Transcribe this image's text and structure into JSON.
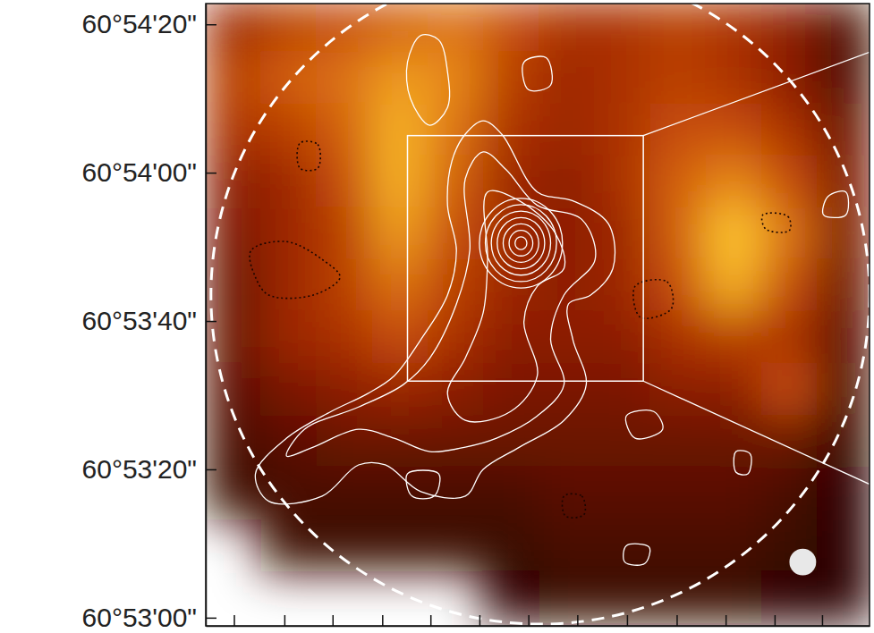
{
  "chart_data": {
    "type": "contour_image",
    "xlim": [
      -45.1,
      44.4
    ],
    "xticks": [
      -41.3,
      -34.5,
      -28.0,
      -21.3,
      -14.8,
      -8.2,
      -1.6,
      5.0,
      11.7,
      18.4,
      25.0,
      31.6,
      38.0
    ],
    "ylim": [
      219178.9,
      219262.8
    ],
    "yticks": [
      {
        "value": 219260,
        "label": "60°54'20\""
      },
      {
        "value": 219240,
        "label": "60°54'00\""
      },
      {
        "value": 219220,
        "label": "60°53'40\""
      },
      {
        "value": 219200,
        "label": "60°53'20\""
      },
      {
        "value": 219180,
        "label": "60°53'00\""
      }
    ],
    "tick_labels": "y",
    "image": {
      "x": [
        -41.4,
        -33.9,
        -26.4,
        -18.9,
        -11.4,
        -3.9,
        3.6,
        11.1,
        18.6,
        26.1,
        33.6,
        41.1
      ],
      "y": [
        219259.8,
        219252.8,
        219245.8,
        219238.8,
        219231.8,
        219224.8,
        219217.8,
        219210.8,
        219203.8,
        219196.8,
        219189.8,
        219182.8
      ],
      "z": [
        [
          0.45,
          0.55,
          0.6,
          0.65,
          0.7,
          0.6,
          0.5,
          0.5,
          0.55,
          0.5,
          0.4,
          0.2
        ],
        [
          0.55,
          0.65,
          0.7,
          0.8,
          0.75,
          0.55,
          0.45,
          0.5,
          0.55,
          0.5,
          0.4,
          0.2
        ],
        [
          0.5,
          0.55,
          0.65,
          0.85,
          0.7,
          0.5,
          0.45,
          0.5,
          0.6,
          0.6,
          0.5,
          0.3
        ],
        [
          0.4,
          0.45,
          0.6,
          0.85,
          0.65,
          0.45,
          0.4,
          0.5,
          0.65,
          0.75,
          0.6,
          0.35
        ],
        [
          0.35,
          0.45,
          0.55,
          0.8,
          0.6,
          0.45,
          0.4,
          0.45,
          0.65,
          0.9,
          0.7,
          0.35
        ],
        [
          0.3,
          0.45,
          0.55,
          0.7,
          0.55,
          0.45,
          0.4,
          0.45,
          0.6,
          0.85,
          0.6,
          0.3
        ],
        [
          0.3,
          0.45,
          0.5,
          0.6,
          0.5,
          0.4,
          0.4,
          0.4,
          0.5,
          0.55,
          0.5,
          0.25
        ],
        [
          0.25,
          0.35,
          0.4,
          0.45,
          0.4,
          0.35,
          0.35,
          0.35,
          0.4,
          0.4,
          0.6,
          0.2
        ],
        [
          0.2,
          0.25,
          0.3,
          0.3,
          0.3,
          0.3,
          0.3,
          0.3,
          0.3,
          0.3,
          0.3,
          0.15
        ],
        [
          0.15,
          0.2,
          0.2,
          0.2,
          0.2,
          0.2,
          0.25,
          0.25,
          0.25,
          0.25,
          0.2,
          0.1
        ],
        [
          null,
          0.15,
          0.15,
          0.15,
          0.15,
          0.15,
          0.2,
          0.2,
          0.2,
          0.2,
          0.15,
          0.1
        ],
        [
          null,
          null,
          null,
          null,
          null,
          0.1,
          0.15,
          0.15,
          0.15,
          0.15,
          0.1,
          0.1
        ]
      ]
    },
    "contours": [
      [
        [
          -11.9,
          219241.6
        ],
        [
          -10.1,
          219245.2
        ],
        [
          -7.7,
          219247.0
        ],
        [
          -5.2,
          219245.2
        ],
        [
          -0.4,
          219237.4
        ],
        [
          4.4,
          219236.2
        ],
        [
          9.2,
          219233.1
        ],
        [
          9.8,
          219227.1
        ],
        [
          6.8,
          219223.5
        ],
        [
          3.8,
          219222.3
        ],
        [
          4.4,
          219217.5
        ],
        [
          6.2,
          219211.4
        ],
        [
          3.2,
          219206.6
        ],
        [
          -2.8,
          219203.0
        ],
        [
          -7.7,
          219200.0
        ],
        [
          -10.1,
          219196.4
        ],
        [
          -16.1,
          219197.0
        ],
        [
          -20.9,
          219200.6
        ],
        [
          -24.5,
          219200.6
        ],
        [
          -29.4,
          219196.4
        ],
        [
          -36.6,
          219195.7
        ],
        [
          -38.4,
          219199.4
        ],
        [
          -34.2,
          219204.2
        ],
        [
          -28.2,
          219207.8
        ],
        [
          -23.3,
          219210.2
        ],
        [
          -19.7,
          219212.6
        ],
        [
          -16.1,
          219217.5
        ],
        [
          -12.5,
          219223.5
        ],
        [
          -11.3,
          219229.5
        ],
        [
          -12.5,
          219235.6
        ]
      ],
      [
        [
          -10.1,
          219239.2
        ],
        [
          -7.7,
          219242.8
        ],
        [
          -4.6,
          219240.4
        ],
        [
          -0.4,
          219235.6
        ],
        [
          5.6,
          219233.7
        ],
        [
          7.4,
          219228.3
        ],
        [
          3.2,
          219223.5
        ],
        [
          1.4,
          219217.5
        ],
        [
          3.2,
          219211.4
        ],
        [
          -0.4,
          219207.2
        ],
        [
          -5.9,
          219204.2
        ],
        [
          -10.1,
          219203.0
        ],
        [
          -14.9,
          219202.4
        ],
        [
          -19.7,
          219204.2
        ],
        [
          -24.5,
          219205.4
        ],
        [
          -30.6,
          219203.0
        ],
        [
          -34.2,
          219201.8
        ],
        [
          -31.8,
          219205.4
        ],
        [
          -24.5,
          219208.4
        ],
        [
          -18.5,
          219211.4
        ],
        [
          -14.9,
          219215.0
        ],
        [
          -11.3,
          219222.3
        ],
        [
          -9.5,
          219229.5
        ]
      ],
      [
        [
          -7.1,
          219237.4
        ],
        [
          -2.8,
          219236.2
        ],
        [
          2.0,
          219231.9
        ],
        [
          3.2,
          219227.1
        ],
        [
          -0.4,
          219224.7
        ],
        [
          -2.2,
          219219.9
        ],
        [
          -0.4,
          219212.6
        ],
        [
          -4.0,
          219207.8
        ],
        [
          -10.1,
          219206.6
        ],
        [
          -12.5,
          219210.2
        ],
        [
          -10.1,
          219215.0
        ],
        [
          -7.7,
          219221.1
        ],
        [
          -7.1,
          219228.3
        ]
      ],
      [
        [
          -17.9,
          219254.9
        ],
        [
          -16.1,
          219258.5
        ],
        [
          -13.7,
          219257.9
        ],
        [
          -12.5,
          219253.6
        ],
        [
          -12.5,
          219248.8
        ],
        [
          -14.9,
          219246.4
        ],
        [
          -17.5,
          219250.0
        ]
      ],
      [
        [
          -2.2,
          219254.9
        ],
        [
          0.8,
          219255.5
        ],
        [
          1.4,
          219251.8
        ],
        [
          -1.6,
          219251.2
        ]
      ],
      [
        [
          11.6,
          219207.2
        ],
        [
          15.3,
          219207.8
        ],
        [
          16.5,
          219205.4
        ],
        [
          12.8,
          219204.2
        ]
      ],
      [
        [
          -17.9,
          219199.4
        ],
        [
          -13.7,
          219199.4
        ],
        [
          -14.3,
          219196.4
        ],
        [
          -17.3,
          219196.4
        ]
      ],
      [
        [
          11.6,
          219189.7
        ],
        [
          14.7,
          219189.5
        ],
        [
          14.1,
          219187.3
        ],
        [
          11.4,
          219187.5
        ]
      ],
      [
        [
          26.4,
          219202.4
        ],
        [
          28.3,
          219202.1
        ],
        [
          28.0,
          219199.4
        ],
        [
          26.4,
          219199.6
        ]
      ],
      [
        [
          38.8,
          219236.8
        ],
        [
          41.2,
          219237.4
        ],
        [
          41.2,
          219234.3
        ],
        [
          38.2,
          219234.3
        ]
      ]
    ],
    "negative_contours": [
      [
        [
          -32.4,
          219244.0
        ],
        [
          -30.0,
          219243.8
        ],
        [
          -30.0,
          219240.6
        ],
        [
          -32.4,
          219240.6
        ]
      ],
      [
        [
          -39.0,
          219229.5
        ],
        [
          -34.2,
          219230.7
        ],
        [
          -29.4,
          219228.3
        ],
        [
          -27.0,
          219225.9
        ],
        [
          -30.6,
          219223.5
        ],
        [
          -36.6,
          219223.5
        ],
        [
          -38.4,
          219225.9
        ]
      ],
      [
        [
          12.8,
          219224.7
        ],
        [
          17.1,
          219225.3
        ],
        [
          17.7,
          219221.7
        ],
        [
          13.5,
          219220.5
        ]
      ],
      [
        [
          30.0,
          219234.3
        ],
        [
          33.4,
          219234.1
        ],
        [
          33.6,
          219232.2
        ],
        [
          30.4,
          219232.4
        ]
      ],
      [
        [
          3.2,
          219196.4
        ],
        [
          5.6,
          219196.4
        ],
        [
          5.9,
          219193.9
        ],
        [
          3.4,
          219193.7
        ]
      ]
    ],
    "rings": {
      "x": -2.6,
      "y": 219230.5,
      "r": [
        0.8,
        1.6,
        2.4,
        3.2,
        4.0,
        4.8,
        5.6
      ]
    },
    "primary_beam": {
      "x": 0,
      "y": 219223.5,
      "r": 44.4
    },
    "box": {
      "x": [
        -17.9,
        13.9
      ],
      "y": [
        219211.9,
        219245.0
      ]
    },
    "beam": {
      "x": 35.4,
      "y": 219187.5,
      "r": 1.8
    }
  }
}
